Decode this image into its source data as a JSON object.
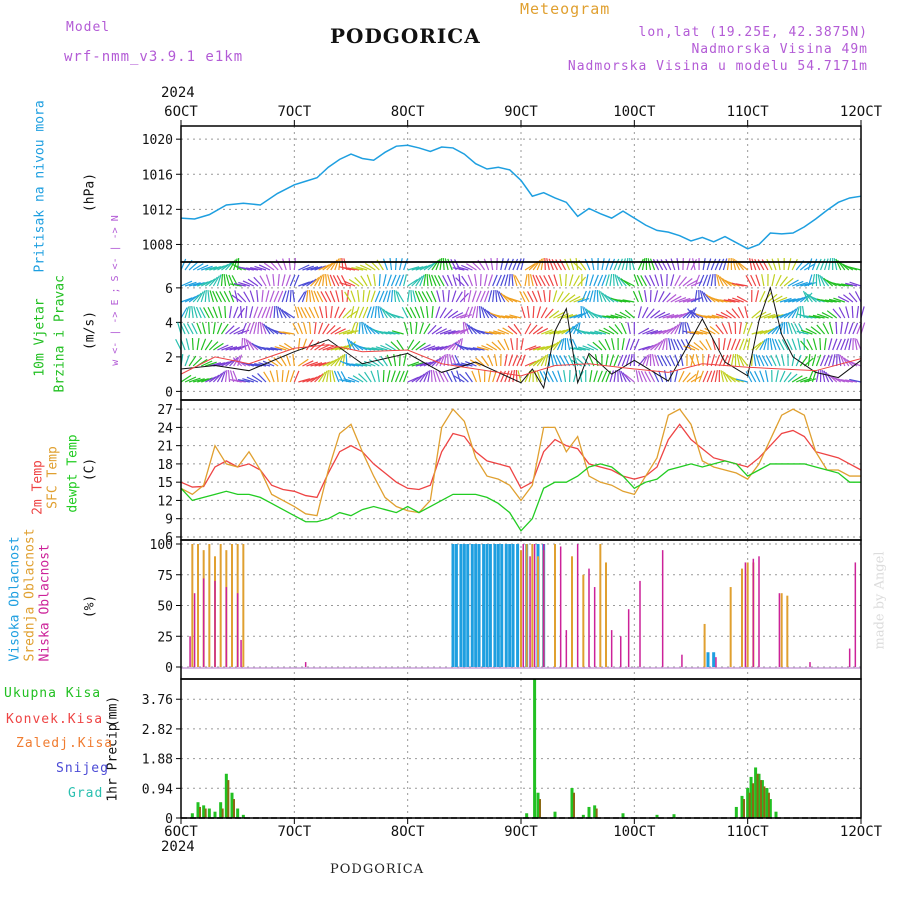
{
  "header": {
    "model_label": "Model",
    "model_name": "wrf-nmm_v3.9.1 e1km",
    "chart_title": "PODGORICA",
    "meteogram_label": "Meteogram",
    "coords": "lon,lat (19.25E, 42.3875N)",
    "elevation": "Nadmorska Visina 49m",
    "model_elevation": "Nadmorska Visina u modelu 54.7171m",
    "year_top": "2024",
    "year_bottom": "2024",
    "footer_title": "PODGORICA",
    "credit": "made by Angel"
  },
  "colors": {
    "pressure": "#1e9fe0",
    "wind_green": "#22c022",
    "temp_red": "#ee4444",
    "sfc_orange": "#e0a030",
    "dewpt_green": "#22cc22",
    "high_cloud": "#1e9fe0",
    "mid_cloud": "#e0a030",
    "low_cloud": "#cc2299",
    "purple": "#b35bd6"
  },
  "chart_data": [
    {
      "type": "line",
      "panel": "pressure",
      "ylabel_main": "Pritisak na nivou mora",
      "ylabel_unit": "(hPa)",
      "x_ticks": [
        "6OCT",
        "7OCT",
        "8OCT",
        "9OCT",
        "10OCT",
        "11OCT",
        "12OCT"
      ],
      "ylim": [
        1006,
        1021.5
      ],
      "y_ticks": [
        1008,
        1012,
        1016,
        1020
      ],
      "series": [
        {
          "x": [
            0,
            0.12,
            0.25,
            0.4,
            0.55,
            0.7,
            0.85,
            1.0,
            1.1,
            1.2,
            1.3,
            1.4,
            1.5,
            1.6,
            1.7,
            1.8,
            1.9,
            2.0,
            2.1,
            2.2,
            2.3,
            2.4,
            2.5,
            2.6,
            2.7,
            2.8,
            2.9,
            3.0,
            3.1,
            3.2,
            3.3,
            3.4,
            3.5,
            3.6,
            3.7,
            3.8,
            3.9,
            4.0,
            4.1,
            4.2,
            4.3,
            4.4,
            4.5,
            4.6,
            4.7,
            4.8,
            4.9,
            5.0,
            5.1,
            5.2,
            5.3,
            5.4,
            5.5,
            5.6,
            5.7,
            5.8,
            5.9,
            6.0
          ],
          "values": [
            1011.0,
            1010.9,
            1011.4,
            1012.5,
            1012.7,
            1012.5,
            1013.8,
            1014.8,
            1015.2,
            1015.6,
            1016.8,
            1017.7,
            1018.3,
            1017.8,
            1017.6,
            1018.5,
            1019.2,
            1019.3,
            1019.0,
            1018.6,
            1019.1,
            1019.0,
            1018.3,
            1017.2,
            1016.6,
            1016.8,
            1016.5,
            1015.3,
            1013.5,
            1013.9,
            1013.3,
            1012.8,
            1011.2,
            1012.1,
            1011.5,
            1011.0,
            1011.8,
            1011.0,
            1010.2,
            1009.6,
            1009.4,
            1009.0,
            1008.4,
            1008.8,
            1008.3,
            1008.9,
            1008.2,
            1007.5,
            1008.0,
            1009.3,
            1009.2,
            1009.3,
            1010.0,
            1010.9,
            1011.9,
            1012.8,
            1013.3,
            1013.5
          ]
        }
      ]
    },
    {
      "type": "line",
      "panel": "wind",
      "ylabel_parts": [
        "10m Vjetar",
        "Brzina i Pravac",
        "(m/s)"
      ],
      "compass": "w <- | -> E ; S <- | -> N",
      "ylim": [
        -0.5,
        7.5
      ],
      "y_ticks": [
        0,
        2,
        4,
        6
      ],
      "series": [
        {
          "name": "speed",
          "x": [
            0,
            0.3,
            0.6,
            1.0,
            1.3,
            1.6,
            2.0,
            2.3,
            2.6,
            3.0,
            3.1,
            3.2,
            3.3,
            3.4,
            3.5,
            3.6,
            3.8,
            4.0,
            4.3,
            4.6,
            4.8,
            5.0,
            5.1,
            5.2,
            5.3,
            5.4,
            5.6,
            5.8,
            6.0
          ],
          "values": [
            1.3,
            1.5,
            1.2,
            2.3,
            3.0,
            1.6,
            2.2,
            1.1,
            1.7,
            0.5,
            1.3,
            0.2,
            3.5,
            4.8,
            0.5,
            2.2,
            1.0,
            1.8,
            0.6,
            4.2,
            1.7,
            0.9,
            4.1,
            6.0,
            3.3,
            2.0,
            1.1,
            0.8,
            1.8
          ]
        },
        {
          "name": "gust",
          "x": [
            0,
            0.3,
            0.6,
            1.0,
            1.3,
            1.6,
            2.0,
            2.3,
            2.6,
            3.0,
            3.3,
            3.6,
            4.0,
            4.3,
            4.6,
            5.0,
            5.3,
            5.6,
            6.0
          ],
          "values": [
            1.0,
            2.0,
            1.6,
            2.5,
            2.7,
            2.3,
            2.4,
            1.6,
            1.3,
            0.9,
            1.5,
            1.6,
            1.3,
            1.1,
            1.6,
            1.4,
            1.3,
            1.2,
            1.9
          ]
        }
      ]
    },
    {
      "type": "line",
      "panel": "temperature",
      "ylabel_parts": [
        "2m Temp",
        "SFC Temp",
        "dewpt Temp",
        "(C)"
      ],
      "ylim": [
        5.5,
        28.5
      ],
      "y_ticks": [
        6,
        9,
        12,
        15,
        18,
        21,
        24,
        27
      ],
      "x": [
        0,
        0.1,
        0.2,
        0.3,
        0.4,
        0.5,
        0.6,
        0.7,
        0.8,
        0.9,
        1.0,
        1.1,
        1.2,
        1.3,
        1.4,
        1.5,
        1.6,
        1.7,
        1.8,
        1.9,
        2.0,
        2.1,
        2.2,
        2.3,
        2.4,
        2.5,
        2.6,
        2.7,
        2.8,
        2.9,
        3.0,
        3.1,
        3.2,
        3.3,
        3.4,
        3.5,
        3.6,
        3.7,
        3.8,
        3.9,
        4.0,
        4.1,
        4.2,
        4.3,
        4.4,
        4.5,
        4.6,
        4.7,
        4.8,
        4.9,
        5.0,
        5.1,
        5.2,
        5.3,
        5.4,
        5.5,
        5.6,
        5.7,
        5.8,
        5.9,
        6.0
      ],
      "series": [
        {
          "name": "2m Temp",
          "values": [
            15,
            14.2,
            14.3,
            17.5,
            18.5,
            17.5,
            18,
            17,
            14.5,
            13.8,
            13.5,
            12.8,
            12.5,
            16.5,
            20,
            21,
            20,
            18,
            16.5,
            15,
            14,
            13.8,
            14.5,
            20,
            23,
            22.5,
            20,
            18.5,
            18,
            17.5,
            14,
            15,
            20,
            22,
            21,
            20.5,
            18,
            17.5,
            17,
            16,
            15.5,
            16,
            17.5,
            22,
            24.5,
            22,
            20.5,
            19,
            18.5,
            18,
            17.5,
            19,
            21,
            23,
            23.5,
            22.5,
            20,
            19.5,
            19,
            18,
            17
          ]
        },
        {
          "name": "SFC Temp",
          "values": [
            14,
            13,
            14.5,
            21,
            18,
            17.5,
            20,
            17,
            13,
            12,
            11,
            9.8,
            9.5,
            17,
            23,
            24.5,
            20,
            16,
            12.5,
            11,
            10.3,
            10,
            12,
            24,
            27,
            25,
            19,
            16,
            15.5,
            14.5,
            12,
            14.5,
            24,
            24,
            20,
            22.5,
            16,
            15,
            14.5,
            13.5,
            13,
            16,
            19,
            26,
            27,
            24.5,
            18.5,
            17.5,
            17,
            16.5,
            15.5,
            18,
            22,
            26,
            27,
            26,
            20,
            17,
            17,
            16,
            16
          ]
        },
        {
          "name": "dewpt Temp",
          "values": [
            14,
            12,
            12.5,
            13,
            13.5,
            13,
            13,
            12.5,
            11.5,
            10.5,
            9.5,
            8.5,
            8.5,
            9,
            10,
            9.5,
            10.5,
            11,
            10.5,
            10,
            11,
            10,
            11,
            12,
            13,
            13,
            13,
            12.5,
            11.5,
            10,
            7,
            9,
            14,
            15,
            15,
            16,
            17.5,
            18,
            17.5,
            16,
            14,
            15,
            15.5,
            17,
            17.5,
            18,
            17.5,
            18,
            18.5,
            18,
            16,
            17,
            18,
            18,
            18,
            18,
            17.5,
            17,
            16.5,
            15,
            15
          ]
        }
      ]
    },
    {
      "type": "bar",
      "panel": "clouds",
      "ylabel_parts": [
        "Visoka Oblacnost",
        "Srednja Oblacnost",
        "Niska Oblacnost",
        "(%)"
      ],
      "ylim": [
        0,
        100
      ],
      "y_ticks": [
        0,
        25,
        50,
        75,
        100
      ],
      "series": [
        {
          "name": "Visoka Oblacnost",
          "x": [
            2.4,
            2.43,
            2.47,
            2.5,
            2.53,
            2.57,
            2.6,
            2.63,
            2.67,
            2.7,
            2.73,
            2.77,
            2.8,
            2.83,
            2.87,
            2.9,
            2.93,
            2.97,
            3.05,
            3.15,
            3.2,
            4.65,
            4.7
          ],
          "values": [
            100,
            100,
            100,
            100,
            100,
            100,
            100,
            100,
            100,
            100,
            100,
            100,
            100,
            100,
            100,
            100,
            100,
            100,
            100,
            100,
            100,
            12,
            12
          ]
        },
        {
          "name": "Srednja Oblacnost",
          "x": [
            0.1,
            0.15,
            0.2,
            0.25,
            0.3,
            0.35,
            0.4,
            0.45,
            0.5,
            0.55,
            3.0,
            3.05,
            3.1,
            3.15,
            3.2,
            3.3,
            3.45,
            3.55,
            3.7,
            3.75,
            4.62,
            4.85,
            4.95,
            5.0,
            5.05,
            5.3,
            5.35
          ],
          "values": [
            100,
            100,
            95,
            100,
            90,
            100,
            95,
            100,
            100,
            100,
            95,
            100,
            100,
            90,
            95,
            100,
            90,
            75,
            100,
            85,
            35,
            65,
            80,
            85,
            85,
            60,
            58
          ]
        },
        {
          "name": "Niska Oblacnost",
          "x": [
            0.08,
            0.12,
            0.2,
            0.3,
            0.4,
            0.5,
            0.53,
            1.1,
            3.02,
            3.08,
            3.12,
            3.2,
            3.35,
            3.4,
            3.5,
            3.6,
            3.65,
            3.8,
            3.88,
            3.95,
            4.05,
            4.25,
            4.42,
            4.72,
            4.98,
            5.05,
            5.1,
            5.28,
            5.55,
            5.9,
            5.95
          ],
          "values": [
            25,
            60,
            72,
            70,
            65,
            60,
            22,
            4,
            100,
            90,
            100,
            100,
            98,
            30,
            100,
            80,
            65,
            30,
            25,
            47,
            70,
            95,
            10,
            8,
            85,
            88,
            90,
            60,
            4,
            15,
            85
          ]
        }
      ]
    },
    {
      "type": "bar",
      "panel": "precipitation",
      "legend": [
        "Ukupna Kisa",
        "Konvek.Kisa",
        "Zaledj.Kisa",
        "Snijeg",
        "Grad"
      ],
      "ylabel_parts": [
        "1hr Precip",
        "(mm)"
      ],
      "ylim": [
        0,
        4.4
      ],
      "y_ticks": [
        0,
        0.94,
        1.88,
        2.82,
        3.76
      ],
      "series": [
        {
          "name": "Ukupna Kisa",
          "x": [
            0.1,
            0.15,
            0.2,
            0.25,
            0.3,
            0.35,
            0.4,
            0.45,
            0.5,
            0.55,
            3.05,
            3.12,
            3.15,
            3.3,
            3.45,
            3.55,
            3.6,
            3.65,
            3.9,
            4.2,
            4.35,
            4.9,
            4.95,
            5.0,
            5.03,
            5.07,
            5.1,
            5.13,
            5.17,
            5.2,
            5.25
          ],
          "values": [
            0.15,
            0.5,
            0.4,
            0.3,
            0.2,
            0.5,
            1.4,
            0.8,
            0.3,
            0.1,
            0.15,
            4.4,
            0.8,
            0.2,
            0.95,
            0.1,
            0.35,
            0.4,
            0.15,
            0.1,
            0.12,
            0.35,
            0.7,
            0.95,
            1.3,
            1.6,
            1.4,
            1.2,
            0.95,
            0.6,
            0.2
          ]
        },
        {
          "name": "Konvek.Kisa",
          "x": [
            0.15,
            0.2,
            0.35,
            0.4,
            0.45,
            3.15,
            3.45,
            3.65,
            4.95,
            5.0,
            5.03,
            5.07,
            5.1,
            5.13,
            5.17
          ],
          "values": [
            0.35,
            0.3,
            0.3,
            1.2,
            0.6,
            0.6,
            0.8,
            0.3,
            0.6,
            0.8,
            1.1,
            1.4,
            1.2,
            1.0,
            0.8
          ]
        }
      ]
    }
  ]
}
